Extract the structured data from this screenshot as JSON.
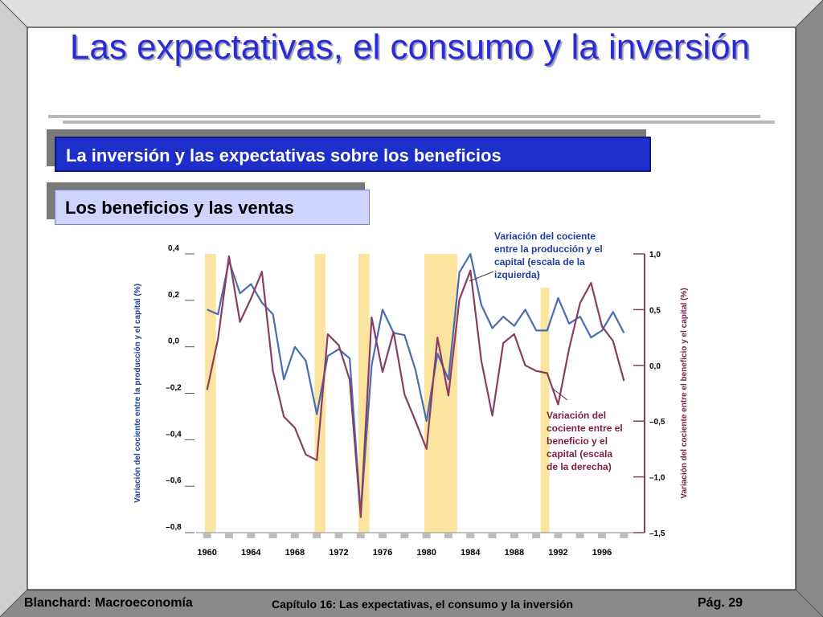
{
  "slide": {
    "title": "Las expectativas, el consumo y la inversión",
    "section_title": "La inversión y las expectativas sobre los beneficios",
    "subsection_title": "Los beneficios y las ventas"
  },
  "footer": {
    "left": "Blanchard: Macroeconomía",
    "center": "Capítulo 16: Las expectativas, el consumo y la inversión",
    "right": "Pág. 29"
  },
  "colors": {
    "blue_series": "#4a6cb0",
    "red_series": "#8a3d63",
    "recession": "#fbe3a0",
    "title": "#2a2ad6"
  },
  "chart_data": {
    "type": "line",
    "left_axis_label": "Variación del cociente entre la producción y el capital (%)",
    "right_axis_label": "Variación del cociente entre el beneficio y el capital (%)",
    "left_ylim": [
      -0.8,
      0.4
    ],
    "left_ticks": [
      "0,4",
      "0,2",
      "0,0",
      "–0,2",
      "–0,4",
      "–0,6",
      "–0,8"
    ],
    "right_ylim": [
      -1.5,
      1.0
    ],
    "right_ticks": [
      "1,0",
      "0,5",
      "0,0",
      "–0,5",
      "–1,0",
      "–1,5"
    ],
    "x_ticks": [
      "1960",
      "1964",
      "1968",
      "1972",
      "1976",
      "1980",
      "1984",
      "1988",
      "1992",
      "1996"
    ],
    "xlim": [
      1959,
      1999
    ],
    "recession_bands": [
      [
        1959.8,
        1960.8
      ],
      [
        1969.8,
        1970.8
      ],
      [
        1973.8,
        1974.8
      ],
      [
        1979.8,
        1982.8
      ],
      [
        1990.4,
        1991.2
      ]
    ],
    "series": [
      {
        "name": "Variación del cociente entre la producción y el capital (escala de la izquierda)",
        "axis": "left",
        "x": [
          1960,
          1961,
          1962,
          1963,
          1964,
          1965,
          1966,
          1967,
          1968,
          1969,
          1970,
          1971,
          1972,
          1973,
          1974,
          1975,
          1976,
          1977,
          1978,
          1979,
          1980,
          1981,
          1982,
          1983,
          1984,
          1985,
          1986,
          1987,
          1988,
          1989,
          1990,
          1991,
          1992,
          1993,
          1994,
          1995,
          1996,
          1997,
          1998
        ],
        "values": [
          0.16,
          0.14,
          0.37,
          0.23,
          0.27,
          0.19,
          0.14,
          -0.14,
          0.0,
          -0.06,
          -0.29,
          -0.04,
          -0.01,
          -0.05,
          -0.72,
          -0.08,
          0.16,
          0.06,
          0.05,
          -0.1,
          -0.32,
          -0.03,
          -0.14,
          0.32,
          0.4,
          0.18,
          0.08,
          0.13,
          0.09,
          0.16,
          0.07,
          0.07,
          0.21,
          0.1,
          0.13,
          0.04,
          0.07,
          0.15,
          0.06
        ]
      },
      {
        "name": "Variación del cociente entre el beneficio y el capital (escala de la derecha)",
        "axis": "right",
        "x": [
          1960,
          1961,
          1962,
          1963,
          1964,
          1965,
          1966,
          1967,
          1968,
          1969,
          1970,
          1971,
          1972,
          1973,
          1974,
          1975,
          1976,
          1977,
          1978,
          1979,
          1980,
          1981,
          1982,
          1983,
          1984,
          1985,
          1986,
          1987,
          1988,
          1989,
          1990,
          1991,
          1992,
          1993,
          1994,
          1995,
          1996,
          1997,
          1998
        ],
        "values": [
          -0.22,
          0.24,
          0.98,
          0.39,
          0.6,
          0.84,
          -0.05,
          -0.46,
          -0.56,
          -0.8,
          -0.85,
          0.28,
          0.18,
          -0.13,
          -1.36,
          0.43,
          -0.06,
          0.3,
          -0.26,
          -0.5,
          -0.75,
          0.25,
          -0.27,
          0.59,
          0.85,
          0.04,
          -0.45,
          0.2,
          0.28,
          0.0,
          -0.05,
          -0.07,
          -0.35,
          0.15,
          0.56,
          0.74,
          0.35,
          0.22,
          -0.14
        ]
      }
    ],
    "annotations": [
      {
        "text": "Variación del cociente entre la producción y el capital (escala de la izquierda)",
        "lines": [
          "Variación del cociente",
          "entre la producción y el",
          "capital (escala de la",
          "izquierda)"
        ]
      },
      {
        "text": "Variación del cociente entre el beneficio y el capital (escala de la derecha)",
        "lines": [
          "Variación del",
          "cociente entre el",
          "beneficio y el",
          "capital (escala",
          "de la derecha)"
        ]
      }
    ]
  }
}
